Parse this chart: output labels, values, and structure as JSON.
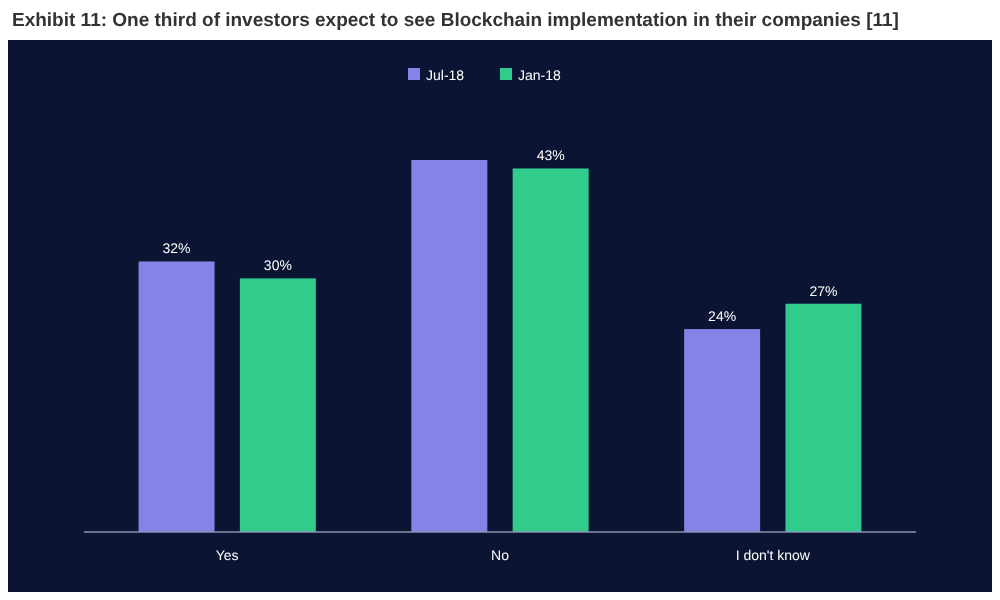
{
  "chart_data": {
    "type": "bar",
    "title": "Exhibit 11: One third of investors expect to see Blockchain implementation in their companies [11]",
    "categories": [
      "Yes",
      "No",
      "I don't know"
    ],
    "series": [
      {
        "name": "Jul-18",
        "color": "#8583e6",
        "values": [
          32,
          44,
          24
        ],
        "value_labels": [
          "32%",
          null,
          "24%"
        ]
      },
      {
        "name": "Jan-18",
        "color": "#31cc8c",
        "values": [
          30,
          43,
          27
        ],
        "value_labels": [
          "30%",
          "43%",
          "27%"
        ]
      }
    ],
    "legend": "top",
    "grid": false
  }
}
